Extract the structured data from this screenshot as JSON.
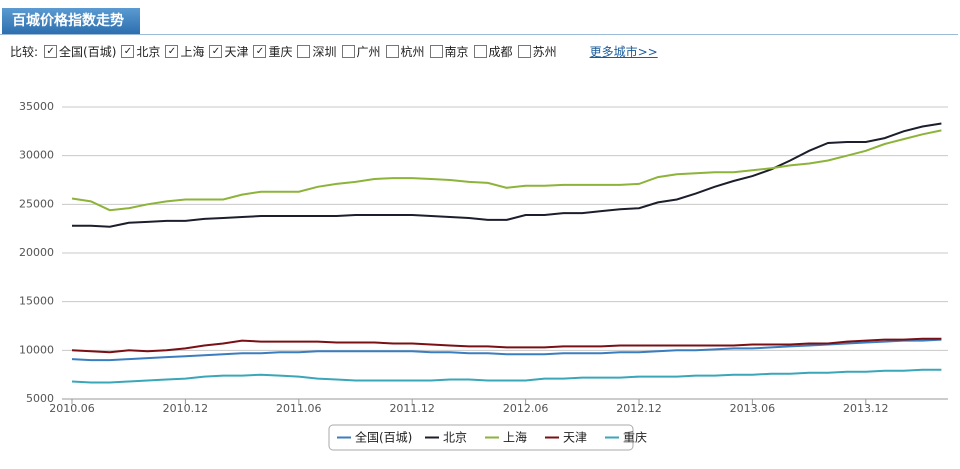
{
  "ui": {
    "tab_title": "百城价格指数走势",
    "compare_label": "比较:",
    "cities": [
      {
        "name": "全国(百城)",
        "checked": true
      },
      {
        "name": "北京",
        "checked": true
      },
      {
        "name": "上海",
        "checked": true
      },
      {
        "name": "天津",
        "checked": true
      },
      {
        "name": "重庆",
        "checked": true
      },
      {
        "name": "深圳",
        "checked": false
      },
      {
        "name": "广州",
        "checked": false
      },
      {
        "name": "杭州",
        "checked": false
      },
      {
        "name": "南京",
        "checked": false
      },
      {
        "name": "成都",
        "checked": false
      },
      {
        "name": "苏州",
        "checked": false
      }
    ],
    "more_link": "更多城市>>"
  },
  "chart_data": {
    "type": "line",
    "categories": [
      "2010.06",
      null,
      null,
      null,
      null,
      null,
      "2010.12",
      null,
      null,
      null,
      null,
      null,
      "2011.06",
      null,
      null,
      null,
      null,
      null,
      "2011.12",
      null,
      null,
      null,
      null,
      null,
      "2012.06",
      null,
      null,
      null,
      null,
      null,
      "2012.12",
      null,
      null,
      null,
      null,
      null,
      "2013.06",
      null,
      null,
      null,
      null,
      null,
      "2013.12",
      null,
      null,
      null,
      null
    ],
    "ylim": [
      5000,
      35000
    ],
    "yticks": [
      5000,
      10000,
      15000,
      20000,
      25000,
      30000,
      35000
    ],
    "grid": true,
    "series": [
      {
        "name": "全国(百城)",
        "color": "#3b7ec0",
        "values": [
          9100,
          9000,
          9000,
          9100,
          9200,
          9300,
          9400,
          9500,
          9600,
          9700,
          9700,
          9800,
          9800,
          9900,
          9900,
          9900,
          9900,
          9900,
          9900,
          9800,
          9800,
          9700,
          9700,
          9600,
          9600,
          9600,
          9700,
          9700,
          9700,
          9800,
          9800,
          9900,
          10000,
          10000,
          10100,
          10200,
          10200,
          10300,
          10400,
          10500,
          10600,
          10700,
          10800,
          10900,
          11000,
          11000,
          11100
        ]
      },
      {
        "name": "北京",
        "color": "#1c1f2b",
        "values": [
          22800,
          22800,
          22700,
          23100,
          23200,
          23300,
          23300,
          23500,
          23600,
          23700,
          23800,
          23800,
          23800,
          23800,
          23800,
          23900,
          23900,
          23900,
          23900,
          23800,
          23700,
          23600,
          23400,
          23400,
          23900,
          23900,
          24100,
          24100,
          24300,
          24500,
          24600,
          25200,
          25500,
          26100,
          26800,
          27400,
          27900,
          28600,
          29500,
          30500,
          31300,
          31400,
          31400,
          31800,
          32500,
          33000,
          33300
        ]
      },
      {
        "name": "上海",
        "color": "#8db33a",
        "values": [
          25600,
          25300,
          24400,
          24600,
          25000,
          25300,
          25500,
          25500,
          25500,
          26000,
          26300,
          26300,
          26300,
          26800,
          27100,
          27300,
          27600,
          27700,
          27700,
          27600,
          27500,
          27300,
          27200,
          26700,
          26900,
          26900,
          27000,
          27000,
          27000,
          27000,
          27100,
          27800,
          28100,
          28200,
          28300,
          28300,
          28500,
          28700,
          29000,
          29200,
          29500,
          30000,
          30500,
          31200,
          31700,
          32200,
          32600
        ]
      },
      {
        "name": "天津",
        "color": "#7a1014",
        "values": [
          10000,
          9900,
          9800,
          10000,
          9900,
          10000,
          10200,
          10500,
          10700,
          11000,
          10900,
          10900,
          10900,
          10900,
          10800,
          10800,
          10800,
          10700,
          10700,
          10600,
          10500,
          10400,
          10400,
          10300,
          10300,
          10300,
          10400,
          10400,
          10400,
          10500,
          10500,
          10500,
          10500,
          10500,
          10500,
          10500,
          10600,
          10600,
          10600,
          10700,
          10700,
          10900,
          11000,
          11100,
          11100,
          11200,
          11200
        ]
      },
      {
        "name": "重庆",
        "color": "#3aa6ba",
        "values": [
          6800,
          6700,
          6700,
          6800,
          6900,
          7000,
          7100,
          7300,
          7400,
          7400,
          7500,
          7400,
          7300,
          7100,
          7000,
          6900,
          6900,
          6900,
          6900,
          6900,
          7000,
          7000,
          6900,
          6900,
          6900,
          7100,
          7100,
          7200,
          7200,
          7200,
          7300,
          7300,
          7300,
          7400,
          7400,
          7500,
          7500,
          7600,
          7600,
          7700,
          7700,
          7800,
          7800,
          7900,
          7900,
          8000,
          8000
        ]
      }
    ]
  }
}
